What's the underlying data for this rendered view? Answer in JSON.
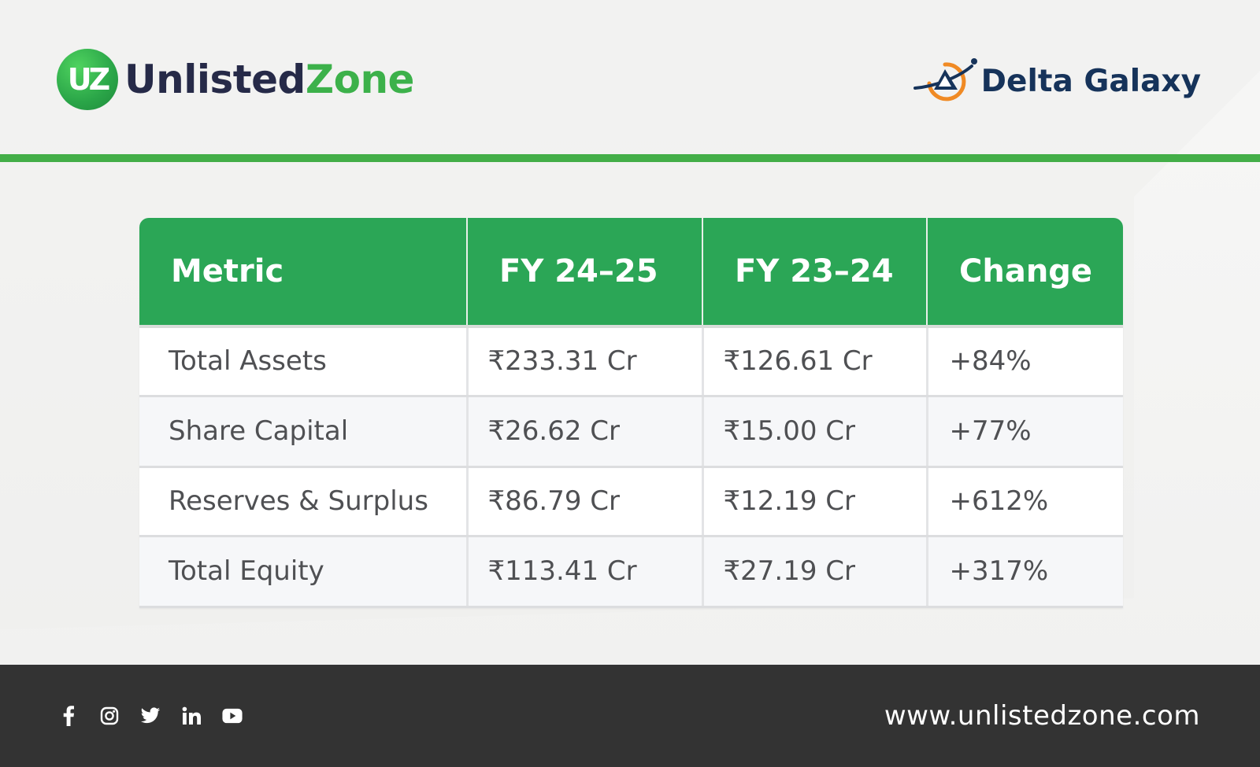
{
  "header": {
    "brand_left": {
      "part1": "Unlisted",
      "part2": "Zone",
      "mark": "UZ"
    },
    "brand_right": {
      "name": "Delta Galaxy"
    }
  },
  "colors": {
    "accent_green": "#2ba656",
    "rule_green": "#43ae47",
    "dark_navy": "#16335a",
    "footer_bg": "#333333"
  },
  "table": {
    "headers": [
      "Metric",
      "FY 24–25",
      "FY 23–24",
      "Change"
    ],
    "rows": [
      [
        "Total Assets",
        "₹233.31 Cr",
        "₹126.61 Cr",
        "+84%"
      ],
      [
        "Share Capital",
        "₹26.62 Cr",
        "₹15.00 Cr",
        "+77%"
      ],
      [
        "Reserves & Surplus",
        "₹86.79 Cr",
        "₹12.19 Cr",
        "+612%"
      ],
      [
        "Total Equity",
        "₹113.41 Cr",
        "₹27.19 Cr",
        "+317%"
      ]
    ]
  },
  "footer": {
    "social_icons": [
      "facebook-icon",
      "instagram-icon",
      "twitter-icon",
      "linkedin-icon",
      "youtube-icon"
    ],
    "website": "www.unlistedzone.com"
  }
}
